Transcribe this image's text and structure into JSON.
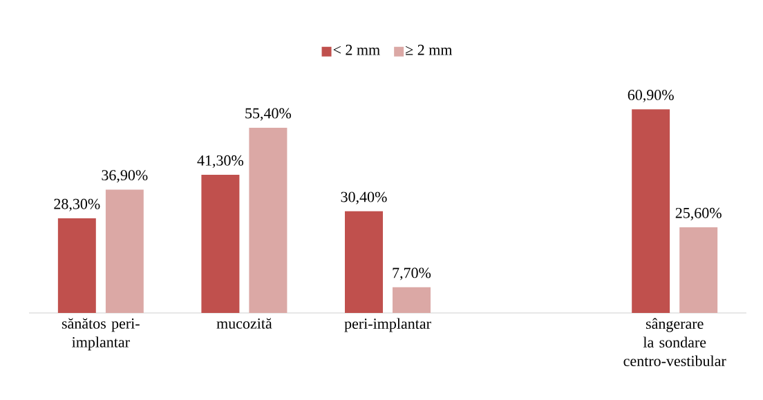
{
  "chart_data": {
    "type": "bar",
    "categories": [
      "sănătos peri-implantar",
      "mucozită",
      "peri-implantar",
      null,
      "sângerare la sondare centro-vestibular"
    ],
    "series": [
      {
        "name": "< 2 mm",
        "color": "#c0504d",
        "values": [
          28.3,
          41.3,
          30.4,
          null,
          60.9
        ],
        "value_labels": [
          "28,30%",
          "41,30%",
          "30,40%",
          null,
          "60,90%"
        ]
      },
      {
        "name": "≥ 2 mm",
        "color": "#dba8a5",
        "values": [
          36.9,
          55.4,
          7.7,
          null,
          25.6
        ],
        "value_labels": [
          "36,90%",
          "55,40%",
          "7,70%",
          null,
          "25,60%"
        ]
      }
    ],
    "legend": "top"
  }
}
